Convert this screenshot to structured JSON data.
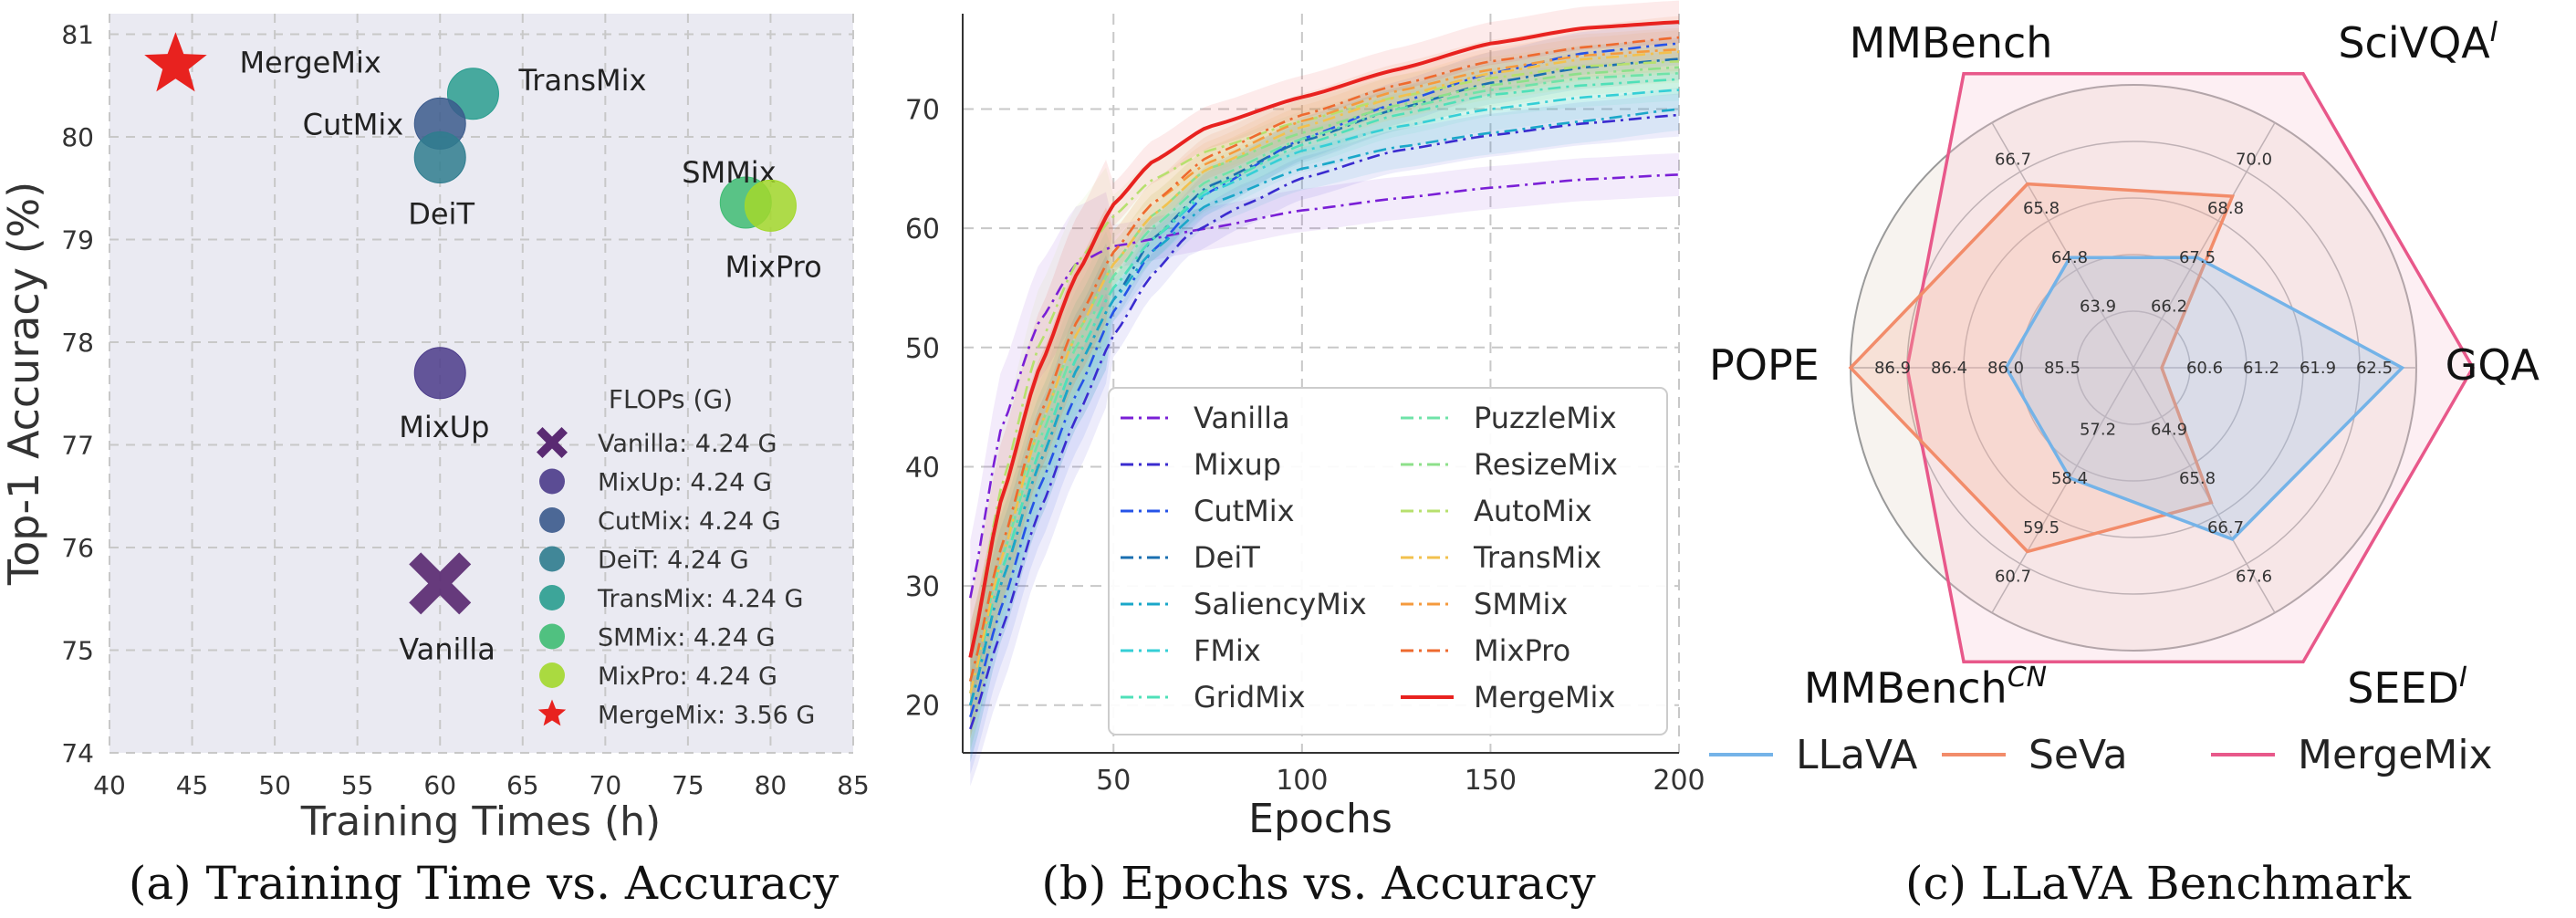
{
  "chart_data": [
    {
      "type": "scatter",
      "caption": "(a) Training Time vs. Accuracy",
      "xlabel": "Training Times (h)",
      "ylabel": "Top-1 Accuracy (%)",
      "xlim": [
        40,
        85
      ],
      "ylim": [
        74,
        81.2
      ],
      "xticks": [
        "40",
        "45",
        "50",
        "55",
        "60",
        "65",
        "70",
        "75",
        "80",
        "85"
      ],
      "yticks": [
        "74",
        "75",
        "76",
        "77",
        "78",
        "79",
        "80",
        "81"
      ],
      "legend_title": "FLOPs (G)",
      "points": [
        {
          "name": "MergeMix",
          "x": 44,
          "y": 80.7,
          "marker": "star",
          "color": "#e8221f",
          "label": "MergeMix",
          "legend": "MergeMix: 3.56 G"
        },
        {
          "name": "TransMix",
          "x": 62,
          "y": 80.42,
          "marker": "circle",
          "color": "#2a9d8f",
          "label": "TransMix",
          "legend": "TransMix: 4.24 G"
        },
        {
          "name": "CutMix",
          "x": 60,
          "y": 80.13,
          "marker": "circle",
          "color": "#3b5a8c",
          "label": "CutMix",
          "legend": "CutMix: 4.24 G"
        },
        {
          "name": "DeiT",
          "x": 60,
          "y": 79.8,
          "marker": "circle",
          "color": "#2f7c8e",
          "label": "DeiT",
          "legend": "DeiT: 4.24 G"
        },
        {
          "name": "SMMix",
          "x": 78.5,
          "y": 79.36,
          "marker": "circle",
          "color": "#3fbc73",
          "label": "SMMix",
          "legend": "SMMix: 4.24 G"
        },
        {
          "name": "MixPro",
          "x": 80,
          "y": 79.33,
          "marker": "circle",
          "color": "#a3d82c",
          "label": "MixPro",
          "legend": "MixPro: 4.24 G"
        },
        {
          "name": "MixUp",
          "x": 60,
          "y": 77.7,
          "marker": "circle",
          "color": "#4b3b8a",
          "label": "MixUp",
          "legend": "MixUp: 4.24 G"
        },
        {
          "name": "Vanilla",
          "x": 60,
          "y": 75.65,
          "marker": "x",
          "color": "#5a2a72",
          "label": "Vanilla",
          "legend": "Vanilla: 4.24 G"
        }
      ]
    },
    {
      "type": "line",
      "caption": "(b) Epochs vs. Accuracy",
      "xlabel": "Epochs",
      "ylabel": "",
      "xlim": [
        10,
        200
      ],
      "ylim": [
        16,
        78
      ],
      "xticks": [
        "50",
        "100",
        "150",
        "200"
      ],
      "yticks": [
        "20",
        "30",
        "40",
        "50",
        "60",
        "70"
      ],
      "series": [
        {
          "name": "Vanilla",
          "color": "#7a1fd6",
          "dash": "dashdot",
          "p": [
            [
              12,
              29
            ],
            [
              20,
              43
            ],
            [
              30,
              52
            ],
            [
              40,
              57
            ],
            [
              50,
              58.5
            ],
            [
              75,
              60
            ],
            [
              100,
              61.5
            ],
            [
              125,
              62.5
            ],
            [
              150,
              63.4
            ],
            [
              175,
              64.1
            ],
            [
              200,
              64.5
            ]
          ]
        },
        {
          "name": "Mixup",
          "color": "#3a2bcf",
          "dash": "dashdot",
          "p": [
            [
              12,
              18
            ],
            [
              20,
              26
            ],
            [
              30,
              36
            ],
            [
              40,
              44
            ],
            [
              50,
              51
            ],
            [
              60,
              56
            ],
            [
              70,
              59.5
            ],
            [
              85,
              62
            ],
            [
              100,
              64.2
            ],
            [
              125,
              66.5
            ],
            [
              150,
              67.8
            ],
            [
              175,
              68.8
            ],
            [
              200,
              69.5
            ]
          ]
        },
        {
          "name": "CutMix",
          "color": "#2553e8",
          "dash": "dashdot",
          "p": [
            [
              12,
              19
            ],
            [
              20,
              28
            ],
            [
              30,
              38
            ],
            [
              40,
              46
            ],
            [
              50,
              53
            ],
            [
              60,
              58
            ],
            [
              75,
              63
            ],
            [
              100,
              67.5
            ],
            [
              125,
              70.5
            ],
            [
              150,
              73
            ],
            [
              175,
              74.7
            ],
            [
              200,
              75.5
            ]
          ]
        },
        {
          "name": "DeiT",
          "color": "#1a6fb0",
          "dash": "dashdot",
          "p": [
            [
              12,
              20
            ],
            [
              20,
              30
            ],
            [
              30,
              40
            ],
            [
              40,
              48
            ],
            [
              50,
              54
            ],
            [
              60,
              59
            ],
            [
              75,
              63.5
            ],
            [
              100,
              67.3
            ],
            [
              125,
              70
            ],
            [
              150,
              72.2
            ],
            [
              175,
              73.5
            ],
            [
              200,
              74.2
            ]
          ]
        },
        {
          "name": "SaliencyMix",
          "color": "#1aa7c9",
          "dash": "dashdot",
          "p": [
            [
              12,
              20
            ],
            [
              20,
              30
            ],
            [
              30,
              40
            ],
            [
              40,
              48
            ],
            [
              50,
              54
            ],
            [
              60,
              58
            ],
            [
              75,
              62
            ],
            [
              100,
              65
            ],
            [
              125,
              66.8
            ],
            [
              150,
              68
            ],
            [
              175,
              69
            ],
            [
              200,
              70
            ]
          ]
        },
        {
          "name": "FMix",
          "color": "#35cfd6",
          "dash": "dashdot",
          "p": [
            [
              12,
              21
            ],
            [
              20,
              31
            ],
            [
              30,
              41
            ],
            [
              40,
              49
            ],
            [
              50,
              55
            ],
            [
              60,
              59
            ],
            [
              75,
              63
            ],
            [
              100,
              66.5
            ],
            [
              125,
              68.5
            ],
            [
              150,
              70
            ],
            [
              175,
              71
            ],
            [
              200,
              71.6
            ]
          ]
        },
        {
          "name": "GridMix",
          "color": "#4fe0b8",
          "dash": "dashdot",
          "p": [
            [
              12,
              21
            ],
            [
              20,
              31
            ],
            [
              30,
              41
            ],
            [
              40,
              49
            ],
            [
              50,
              55
            ],
            [
              60,
              59
            ],
            [
              75,
              63.3
            ],
            [
              100,
              67
            ],
            [
              125,
              69.5
            ],
            [
              150,
              71.2
            ],
            [
              175,
              72
            ],
            [
              200,
              72.5
            ]
          ]
        },
        {
          "name": "PuzzleMix",
          "color": "#6fe3a8",
          "dash": "dashdot",
          "p": [
            [
              12,
              22
            ],
            [
              20,
              32
            ],
            [
              30,
              42
            ],
            [
              40,
              50
            ],
            [
              50,
              56
            ],
            [
              60,
              60
            ],
            [
              75,
              64
            ],
            [
              100,
              67.5
            ],
            [
              125,
              70
            ],
            [
              150,
              71.6
            ],
            [
              175,
              72.6
            ],
            [
              200,
              73
            ]
          ]
        },
        {
          "name": "ResizeMix",
          "color": "#8de08a",
          "dash": "dashdot",
          "p": [
            [
              12,
              22
            ],
            [
              20,
              33
            ],
            [
              30,
              43
            ],
            [
              40,
              51
            ],
            [
              50,
              57
            ],
            [
              60,
              61
            ],
            [
              75,
              65
            ],
            [
              100,
              68
            ],
            [
              125,
              70.3
            ],
            [
              150,
              72
            ],
            [
              175,
              73
            ],
            [
              200,
              73.5
            ]
          ]
        },
        {
          "name": "AutoMix",
          "color": "#b7e06e",
          "dash": "dashdot",
          "p": [
            [
              12,
              24
            ],
            [
              20,
              38
            ],
            [
              30,
              50
            ],
            [
              40,
              57
            ],
            [
              50,
              61
            ],
            [
              60,
              64
            ],
            [
              75,
              66.5
            ],
            [
              100,
              69
            ],
            [
              125,
              71
            ],
            [
              150,
              72.6
            ],
            [
              175,
              73.6
            ],
            [
              200,
              74
            ]
          ]
        },
        {
          "name": "TransMix",
          "color": "#f2c14e",
          "dash": "dashdot",
          "p": [
            [
              12,
              21
            ],
            [
              20,
              32
            ],
            [
              30,
              43
            ],
            [
              40,
              51
            ],
            [
              50,
              57
            ],
            [
              60,
              61
            ],
            [
              75,
              65
            ],
            [
              100,
              68.5
            ],
            [
              125,
              71
            ],
            [
              150,
              73
            ],
            [
              175,
              74.2
            ],
            [
              200,
              74.8
            ]
          ]
        },
        {
          "name": "SMMix",
          "color": "#f59a3d",
          "dash": "dashdot",
          "p": [
            [
              12,
              22
            ],
            [
              20,
              33
            ],
            [
              30,
              44
            ],
            [
              40,
              52
            ],
            [
              50,
              58
            ],
            [
              60,
              62
            ],
            [
              75,
              65.5
            ],
            [
              100,
              69
            ],
            [
              125,
              71.5
            ],
            [
              150,
              73.3
            ],
            [
              175,
              74.5
            ],
            [
              200,
              75
            ]
          ]
        },
        {
          "name": "MixPro",
          "color": "#ee6a2f",
          "dash": "dashdot",
          "p": [
            [
              12,
              22
            ],
            [
              20,
              33
            ],
            [
              30,
              44
            ],
            [
              40,
              52
            ],
            [
              50,
              58
            ],
            [
              60,
              62
            ],
            [
              75,
              66
            ],
            [
              100,
              69.5
            ],
            [
              125,
              72
            ],
            [
              150,
              74
            ],
            [
              175,
              75.2
            ],
            [
              200,
              76
            ]
          ]
        },
        {
          "name": "MergeMix",
          "color": "#e8221f",
          "dash": "solid",
          "p": [
            [
              12,
              24
            ],
            [
              20,
              37
            ],
            [
              30,
              48
            ],
            [
              40,
              56
            ],
            [
              50,
              62
            ],
            [
              60,
              65.5
            ],
            [
              75,
              68.5
            ],
            [
              100,
              71
            ],
            [
              125,
              73.3
            ],
            [
              150,
              75.5
            ],
            [
              175,
              76.8
            ],
            [
              200,
              77.3
            ]
          ]
        }
      ]
    },
    {
      "type": "radar",
      "caption": "(c) LLaVA Benchmark",
      "axes": [
        {
          "label": "GQA",
          "sup": "",
          "ticks": [
            "60.6",
            "61.2",
            "61.9",
            "62.5"
          ]
        },
        {
          "label": "SciVQA",
          "sup": "I",
          "ticks": [
            "66.2",
            "67.5",
            "68.8",
            "70.0"
          ]
        },
        {
          "label": "MMBench",
          "sup": "",
          "ticks": [
            "63.9",
            "64.8",
            "65.8",
            "66.7"
          ]
        },
        {
          "label": "POPE",
          "sup": "",
          "ticks": [
            "85.5",
            "86.0",
            "86.4",
            "86.9"
          ]
        },
        {
          "label": "MMBench",
          "sup": "CN",
          "ticks": [
            "57.2",
            "58.4",
            "59.5",
            "60.7"
          ]
        },
        {
          "label": "SEED",
          "sup": "I",
          "ticks": [
            "64.9",
            "65.8",
            "66.7",
            "67.6"
          ]
        }
      ],
      "series": [
        {
          "name": "LLaVA",
          "color": "#74b3e8",
          "fill": "#8fc3ec",
          "r": [
            0.95,
            0.45,
            0.45,
            0.45,
            0.45,
            0.7
          ]
        },
        {
          "name": "SeVa",
          "color": "#f28c6a",
          "fill": "#f7b59b",
          "r": [
            0.1,
            0.7,
            0.75,
            1.0,
            0.75,
            0.55
          ]
        },
        {
          "name": "MergeMix",
          "color": "#e8588a",
          "fill": "#f7c4d4",
          "r": [
            1.2,
            1.2,
            1.2,
            0.8,
            1.2,
            1.2
          ]
        }
      ]
    }
  ]
}
